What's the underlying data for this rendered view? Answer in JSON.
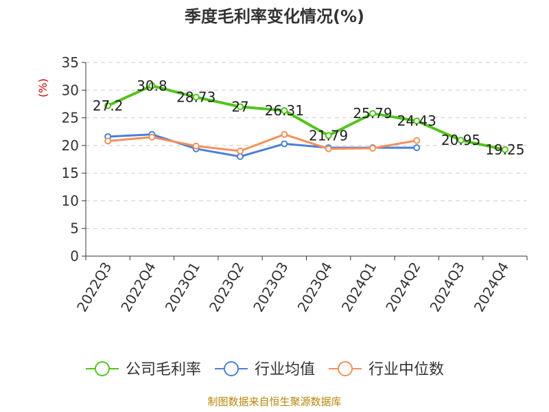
{
  "chart_data": {
    "type": "line",
    "title": "季度毛利率变化情况(%)",
    "ylabel": "(%)",
    "xlabel": "",
    "ylim": [
      0,
      35
    ],
    "yticks": [
      0,
      5,
      10,
      15,
      20,
      25,
      30,
      35
    ],
    "grid": true,
    "legend_position": "bottom",
    "categories": [
      "2022Q3",
      "2022Q4",
      "2023Q1",
      "2023Q2",
      "2023Q3",
      "2023Q4",
      "2024Q1",
      "2024Q2",
      "2024Q3",
      "2024Q4"
    ],
    "series": [
      {
        "name": "公司毛利率",
        "color": "#52c41a",
        "values": [
          27.2,
          30.8,
          28.73,
          27,
          26.31,
          21.79,
          25.79,
          24.43,
          20.95,
          19.25
        ],
        "labels": [
          "27.2",
          "30.8",
          "28.73",
          "27",
          "26.31",
          "21.79",
          "25.79",
          "24.43",
          "20.95",
          "19.25"
        ]
      },
      {
        "name": "行业均值",
        "color": "#4a7fd8",
        "values": [
          21.6,
          22.0,
          19.4,
          18.0,
          20.3,
          19.6,
          19.6,
          19.6,
          null,
          null
        ]
      },
      {
        "name": "行业中位数",
        "color": "#f5905a",
        "values": [
          20.8,
          21.5,
          19.9,
          19.0,
          22.0,
          19.4,
          19.5,
          20.9,
          null,
          null
        ]
      }
    ]
  },
  "footer": {
    "source": "制图数据来自恒生聚源数据库"
  }
}
